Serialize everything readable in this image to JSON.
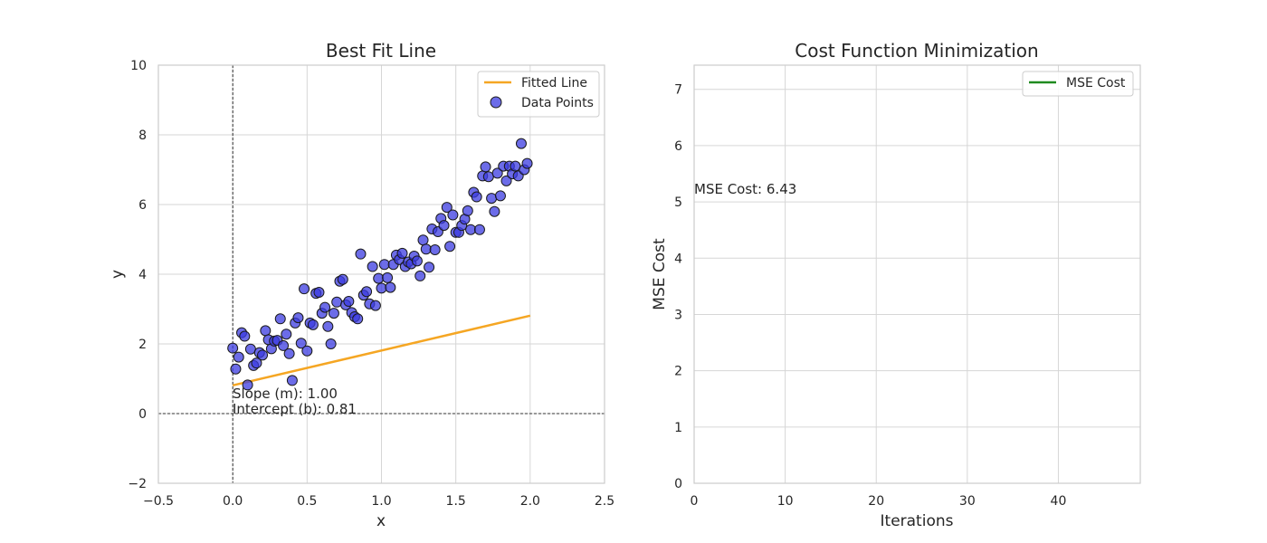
{
  "chart_data": [
    {
      "type": "scatter",
      "title": "Best Fit Line",
      "xlabel": "x",
      "ylabel": "y",
      "xlim": [
        -0.5,
        2.5
      ],
      "ylim": [
        -2,
        10
      ],
      "xticks": [
        -0.5,
        0.0,
        0.5,
        1.0,
        1.5,
        2.0,
        2.5
      ],
      "xtick_labels": [
        "−0.5",
        "0.0",
        "0.5",
        "1.0",
        "1.5",
        "2.0",
        "2.5"
      ],
      "yticks": [
        -2,
        0,
        2,
        4,
        6,
        8,
        10
      ],
      "ytick_labels": [
        "−2",
        "0",
        "2",
        "4",
        "6",
        "8",
        "10"
      ],
      "grid": true,
      "legend": "top-right",
      "series": [
        {
          "name": "Fitted Line",
          "kind": "line",
          "color": "#f5a623",
          "x": [
            0.0,
            2.0
          ],
          "y": [
            0.81,
            2.81
          ]
        },
        {
          "name": "Data Points",
          "kind": "scatter",
          "color": "#3b3be0",
          "points": [
            [
              0.0,
              1.88
            ],
            [
              0.02,
              1.28
            ],
            [
              0.04,
              1.62
            ],
            [
              0.06,
              2.32
            ],
            [
              0.08,
              2.22
            ],
            [
              0.1,
              0.82
            ],
            [
              0.12,
              1.85
            ],
            [
              0.14,
              1.38
            ],
            [
              0.16,
              1.45
            ],
            [
              0.18,
              1.75
            ],
            [
              0.2,
              1.68
            ],
            [
              0.22,
              2.38
            ],
            [
              0.24,
              2.12
            ],
            [
              0.26,
              1.86
            ],
            [
              0.28,
              2.08
            ],
            [
              0.3,
              2.1
            ],
            [
              0.32,
              2.72
            ],
            [
              0.34,
              1.95
            ],
            [
              0.36,
              2.28
            ],
            [
              0.38,
              1.72
            ],
            [
              0.4,
              0.95
            ],
            [
              0.42,
              2.6
            ],
            [
              0.44,
              2.75
            ],
            [
              0.46,
              2.02
            ],
            [
              0.48,
              3.58
            ],
            [
              0.5,
              1.8
            ],
            [
              0.52,
              2.6
            ],
            [
              0.54,
              2.55
            ],
            [
              0.56,
              3.45
            ],
            [
              0.58,
              3.48
            ],
            [
              0.6,
              2.88
            ],
            [
              0.62,
              3.05
            ],
            [
              0.64,
              2.5
            ],
            [
              0.66,
              2.0
            ],
            [
              0.68,
              2.88
            ],
            [
              0.7,
              3.2
            ],
            [
              0.72,
              3.8
            ],
            [
              0.74,
              3.85
            ],
            [
              0.76,
              3.12
            ],
            [
              0.78,
              3.22
            ],
            [
              0.8,
              2.9
            ],
            [
              0.82,
              2.78
            ],
            [
              0.84,
              2.72
            ],
            [
              0.86,
              4.58
            ],
            [
              0.88,
              3.4
            ],
            [
              0.9,
              3.5
            ],
            [
              0.92,
              3.15
            ],
            [
              0.94,
              4.22
            ],
            [
              0.96,
              3.1
            ],
            [
              0.98,
              3.88
            ],
            [
              1.0,
              3.6
            ],
            [
              1.02,
              4.28
            ],
            [
              1.04,
              3.9
            ],
            [
              1.06,
              3.62
            ],
            [
              1.08,
              4.28
            ],
            [
              1.1,
              4.55
            ],
            [
              1.12,
              4.42
            ],
            [
              1.14,
              4.6
            ],
            [
              1.16,
              4.22
            ],
            [
              1.18,
              4.35
            ],
            [
              1.2,
              4.3
            ],
            [
              1.22,
              4.52
            ],
            [
              1.24,
              4.38
            ],
            [
              1.26,
              3.95
            ],
            [
              1.28,
              4.98
            ],
            [
              1.3,
              4.72
            ],
            [
              1.32,
              4.2
            ],
            [
              1.34,
              5.3
            ],
            [
              1.36,
              4.7
            ],
            [
              1.38,
              5.22
            ],
            [
              1.4,
              5.6
            ],
            [
              1.42,
              5.4
            ],
            [
              1.44,
              5.92
            ],
            [
              1.46,
              4.8
            ],
            [
              1.48,
              5.7
            ],
            [
              1.5,
              5.2
            ],
            [
              1.52,
              5.2
            ],
            [
              1.54,
              5.4
            ],
            [
              1.56,
              5.58
            ],
            [
              1.58,
              5.82
            ],
            [
              1.6,
              5.28
            ],
            [
              1.62,
              6.35
            ],
            [
              1.64,
              6.22
            ],
            [
              1.66,
              5.28
            ],
            [
              1.68,
              6.82
            ],
            [
              1.7,
              7.08
            ],
            [
              1.72,
              6.8
            ],
            [
              1.74,
              6.18
            ],
            [
              1.76,
              5.8
            ],
            [
              1.78,
              6.9
            ],
            [
              1.8,
              6.25
            ],
            [
              1.82,
              7.1
            ],
            [
              1.84,
              6.68
            ],
            [
              1.86,
              7.1
            ],
            [
              1.88,
              6.88
            ],
            [
              1.9,
              7.1
            ],
            [
              1.92,
              6.82
            ],
            [
              1.94,
              7.75
            ],
            [
              1.96,
              7.0
            ],
            [
              1.98,
              7.18
            ]
          ]
        }
      ],
      "annotations": [
        "Slope (m): 1.00",
        "Intercept (b): 0.81"
      ]
    },
    {
      "type": "line",
      "title": "Cost Function Minimization",
      "xlabel": "Iterations",
      "ylabel": "MSE Cost",
      "xlim": [
        0,
        49
      ],
      "ylim": [
        0,
        7.43
      ],
      "xticks": [
        0,
        10,
        20,
        30,
        40
      ],
      "xtick_labels": [
        "0",
        "10",
        "20",
        "30",
        "40"
      ],
      "yticks": [
        0,
        1,
        2,
        3,
        4,
        5,
        6,
        7
      ],
      "ytick_labels": [
        "0",
        "1",
        "2",
        "3",
        "4",
        "5",
        "6",
        "7"
      ],
      "grid": true,
      "legend": "top-right",
      "series": [
        {
          "name": "MSE Cost",
          "kind": "line",
          "color": "#1e8a1e",
          "x": [],
          "y": []
        }
      ],
      "annotations": [
        "MSE Cost: 6.43"
      ]
    }
  ]
}
